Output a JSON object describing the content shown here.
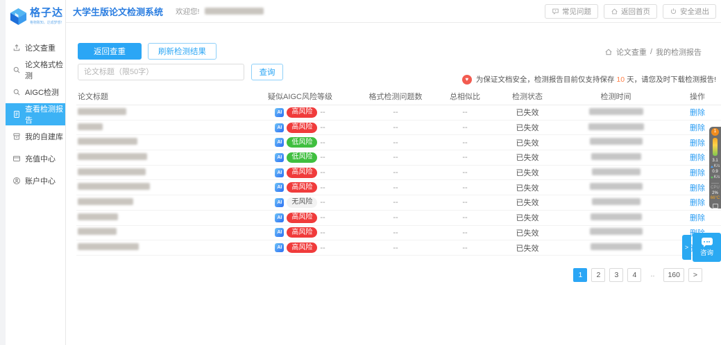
{
  "colors": {
    "primary": "#2ba6f5",
    "logo_blue": "#2a7de0",
    "sidebar_active": "#3cb2f5",
    "risk_high": "#f03b3b",
    "risk_low": "#3fbf3f",
    "risk_none_text": "#555555",
    "link": "#2b9df3",
    "notice_icon_red": "#f25b50",
    "highlight_orange": "#ff7e45"
  },
  "logo": {
    "name": "格子达",
    "slogan": "格物致知，达成梦想！"
  },
  "topbar": {
    "title": "大学生版论文检测系统",
    "welcome": "欢迎您!",
    "actions": [
      {
        "label": "常见问题",
        "icon": "question-bubble-icon"
      },
      {
        "label": "返回首页",
        "icon": "home-icon"
      },
      {
        "label": "安全退出",
        "icon": "power-icon"
      }
    ]
  },
  "sidebar": {
    "items": [
      {
        "label": "论文查重",
        "icon": "upload-icon",
        "active": false
      },
      {
        "label": "论文格式检测",
        "icon": "search-icon",
        "active": false
      },
      {
        "label": "AIGC检测",
        "icon": "search-icon",
        "active": false
      },
      {
        "label": "查看检测报告",
        "icon": "report-icon",
        "active": true
      },
      {
        "label": "我的自建库",
        "icon": "library-icon",
        "active": false
      },
      {
        "label": "充值中心",
        "icon": "recharge-icon",
        "active": false
      },
      {
        "label": "账户中心",
        "icon": "account-icon",
        "active": false
      }
    ]
  },
  "toolbar": {
    "back_button": "返回查重",
    "refresh_button": "刷新检测结果"
  },
  "breadcrumb": {
    "root": "论文查重",
    "separator": "/",
    "current": "我的检测报告"
  },
  "search": {
    "placeholder": "论文标题（限50字）",
    "button": "查询"
  },
  "notice": {
    "text_before": "为保证文档安全，检测报告目前仅支持保存",
    "highlight": "10",
    "text_after": "天，请您及时下载检测报告!"
  },
  "table": {
    "ai_icon_label": "AI",
    "columns": [
      "论文标题",
      "疑似AIGC风险等级",
      "格式检测问题数",
      "总相似比",
      "检测状态",
      "检测时间",
      "操作"
    ],
    "rows": [
      {
        "title_redacted_w": 70,
        "risk": "高风险",
        "level": "high",
        "risk_suffix": "--",
        "format_issues": "--",
        "similarity": "--",
        "status": "已失效",
        "time_redacted_w": 78,
        "action": "删除"
      },
      {
        "title_redacted_w": 36,
        "risk": "高风险",
        "level": "high",
        "risk_suffix": "--",
        "format_issues": "--",
        "similarity": "--",
        "status": "已失效",
        "time_redacted_w": 80,
        "action": "删除"
      },
      {
        "title_redacted_w": 86,
        "risk": "低风险",
        "level": "low",
        "risk_suffix": "--",
        "format_issues": "--",
        "similarity": "--",
        "status": "已失效",
        "time_redacted_w": 76,
        "action": "删除"
      },
      {
        "title_redacted_w": 100,
        "risk": "低风险",
        "level": "low",
        "risk_suffix": "--",
        "format_issues": "--",
        "similarity": "--",
        "status": "已失效",
        "time_redacted_w": 72,
        "action": "删除"
      },
      {
        "title_redacted_w": 98,
        "risk": "高风险",
        "level": "high",
        "risk_suffix": "--",
        "format_issues": "--",
        "similarity": "--",
        "status": "已失效",
        "time_redacted_w": 70,
        "action": "删除"
      },
      {
        "title_redacted_w": 104,
        "risk": "高风险",
        "level": "high",
        "risk_suffix": "--",
        "format_issues": "--",
        "similarity": "--",
        "status": "已失效",
        "time_redacted_w": 76,
        "action": "删除"
      },
      {
        "title_redacted_w": 80,
        "risk": "无风险",
        "level": "none",
        "risk_suffix": "--",
        "format_issues": "--",
        "similarity": "--",
        "status": "已失效",
        "time_redacted_w": 70,
        "action": "删除"
      },
      {
        "title_redacted_w": 58,
        "risk": "高风险",
        "level": "high",
        "risk_suffix": "--",
        "format_issues": "--",
        "similarity": "--",
        "status": "已失效",
        "time_redacted_w": 74,
        "action": "删除"
      },
      {
        "title_redacted_w": 56,
        "risk": "高风险",
        "level": "high",
        "risk_suffix": "--",
        "format_issues": "--",
        "similarity": "--",
        "status": "已失效",
        "time_redacted_w": 76,
        "action": "删除"
      },
      {
        "title_redacted_w": 88,
        "risk": "高风险",
        "level": "high",
        "risk_suffix": "--",
        "format_issues": "--",
        "similarity": "--",
        "status": "已失效",
        "time_redacted_w": 74,
        "action": "删除"
      }
    ]
  },
  "pagination": {
    "pages": [
      {
        "label": "1",
        "active": true
      },
      {
        "label": "2"
      },
      {
        "label": "3"
      },
      {
        "label": "4"
      },
      {
        "label": "..",
        "gap": true
      },
      {
        "label": "160"
      },
      {
        "label": ">",
        "next": true
      }
    ]
  },
  "chat": {
    "label": "咨询",
    "expand_arrow": ">"
  },
  "monitor": {
    "badge": "1",
    "up_value": "3.1",
    "up_unit": "K/s",
    "down_value": "0.9",
    "down_unit": "K/s",
    "cpu_label": "CPU",
    "cpu_value": "2%",
    "temp": "66°C"
  }
}
